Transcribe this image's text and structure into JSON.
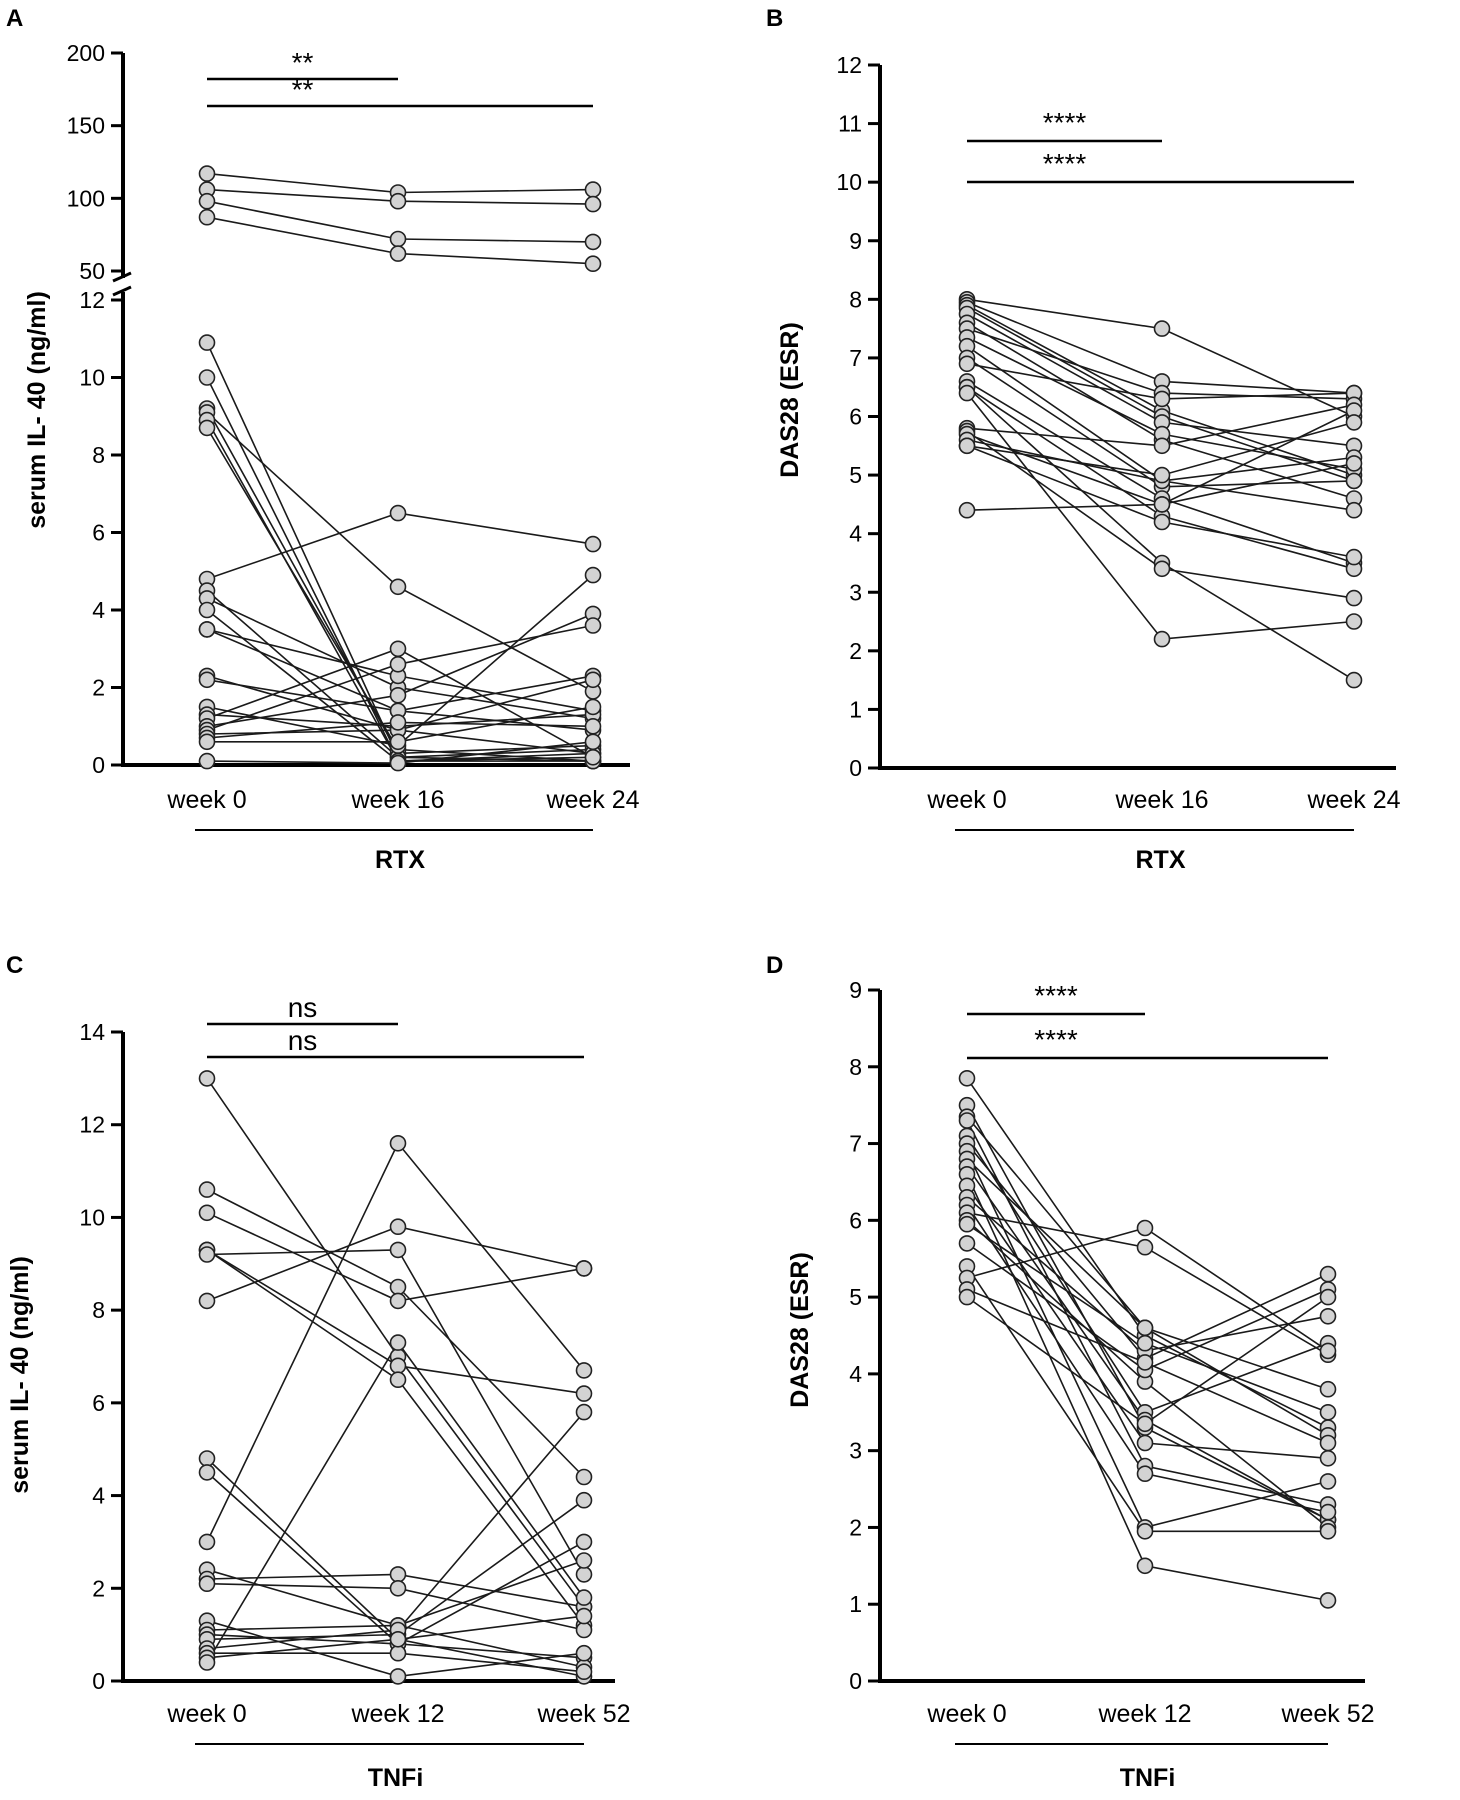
{
  "chart_data": [
    {
      "panel": "A",
      "type": "line",
      "categories": [
        "week 0",
        "week 16",
        "week 24"
      ],
      "group_label": "RTX",
      "ylabel": "serum IL- 40 (ng/ml)",
      "axis_break": true,
      "lower_ylim": [
        0,
        12
      ],
      "lower_ticks": [
        0,
        2,
        4,
        6,
        8,
        10,
        12
      ],
      "upper_ylim": [
        50,
        200
      ],
      "upper_ticks": [
        50,
        100,
        150,
        200
      ],
      "significance": [
        {
          "from": "week 0",
          "to": "week 16",
          "label": "**"
        },
        {
          "from": "week 0",
          "to": "week 24",
          "label": "**"
        }
      ],
      "series": [
        {
          "values": [
            117,
            104,
            106
          ]
        },
        {
          "values": [
            106,
            98,
            96
          ]
        },
        {
          "values": [
            98,
            72,
            70
          ]
        },
        {
          "values": [
            87,
            62,
            55
          ]
        },
        {
          "values": [
            10.9,
            0.2,
            0.1
          ]
        },
        {
          "values": [
            10.0,
            0.1,
            0.3
          ]
        },
        {
          "values": [
            9.2,
            0.3,
            0.5
          ]
        },
        {
          "values": [
            9.1,
            4.6,
            1.9
          ]
        },
        {
          "values": [
            8.9,
            0.1,
            0.2
          ]
        },
        {
          "values": [
            8.7,
            0.4,
            0.1
          ]
        },
        {
          "values": [
            4.8,
            6.5,
            5.7
          ]
        },
        {
          "values": [
            4.5,
            0.2,
            0.4
          ]
        },
        {
          "values": [
            4.3,
            2.0,
            1.2
          ]
        },
        {
          "values": [
            4.0,
            0.1,
            0.1
          ]
        },
        {
          "values": [
            3.5,
            1.4,
            0.9
          ]
        },
        {
          "values": [
            3.5,
            2.3,
            1.4
          ]
        },
        {
          "values": [
            2.3,
            0.9,
            0.3
          ]
        },
        {
          "values": [
            2.2,
            1.4,
            2.3
          ]
        },
        {
          "values": [
            1.5,
            0.5,
            4.9
          ]
        },
        {
          "values": [
            1.3,
            1.0,
            1.3
          ]
        },
        {
          "values": [
            1.2,
            3.0,
            0.2
          ]
        },
        {
          "values": [
            1.0,
            1.8,
            3.9
          ]
        },
        {
          "values": [
            0.9,
            2.6,
            3.6
          ]
        },
        {
          "values": [
            0.8,
            0.9,
            2.2
          ]
        },
        {
          "values": [
            0.7,
            1.1,
            1.0
          ]
        },
        {
          "values": [
            0.6,
            0.6,
            1.5
          ]
        },
        {
          "values": [
            0.1,
            0.05,
            0.6
          ]
        }
      ]
    },
    {
      "panel": "B",
      "type": "line",
      "categories": [
        "week 0",
        "week 16",
        "week 24"
      ],
      "group_label": "RTX",
      "ylabel": "DAS28 (ESR)",
      "ylim": [
        0,
        12
      ],
      "ticks": [
        0,
        1,
        2,
        3,
        4,
        5,
        6,
        7,
        8,
        9,
        10,
        11,
        12
      ],
      "significance": [
        {
          "from": "week 0",
          "to": "week 16",
          "label": "****"
        },
        {
          "from": "week 0",
          "to": "week 24",
          "label": "****"
        }
      ],
      "series": [
        {
          "values": [
            8.0,
            7.5,
            6.0
          ]
        },
        {
          "values": [
            7.95,
            6.6,
            6.4
          ]
        },
        {
          "values": [
            7.9,
            6.1,
            5.0
          ]
        },
        {
          "values": [
            7.85,
            6.0,
            4.9
          ]
        },
        {
          "values": [
            7.75,
            5.9,
            5.5
          ]
        },
        {
          "values": [
            7.6,
            5.6,
            4.6
          ]
        },
        {
          "values": [
            7.5,
            6.4,
            6.3
          ]
        },
        {
          "values": [
            7.35,
            5.7,
            5.1
          ]
        },
        {
          "values": [
            7.2,
            4.9,
            5.3
          ]
        },
        {
          "values": [
            7.0,
            4.8,
            4.9
          ]
        },
        {
          "values": [
            6.9,
            6.3,
            6.4
          ]
        },
        {
          "values": [
            6.6,
            4.6,
            3.5
          ]
        },
        {
          "values": [
            6.5,
            3.5,
            1.5
          ]
        },
        {
          "values": [
            6.5,
            4.3,
            3.4
          ]
        },
        {
          "values": [
            6.4,
            2.2,
            2.5
          ]
        },
        {
          "values": [
            5.8,
            5.5,
            6.2
          ]
        },
        {
          "values": [
            5.75,
            3.4,
            2.9
          ]
        },
        {
          "values": [
            5.7,
            4.5,
            6.1
          ]
        },
        {
          "values": [
            5.6,
            4.9,
            4.4
          ]
        },
        {
          "values": [
            5.5,
            5.0,
            5.9
          ]
        },
        {
          "values": [
            5.5,
            4.2,
            3.6
          ]
        },
        {
          "values": [
            4.4,
            4.5,
            5.2
          ]
        }
      ]
    },
    {
      "panel": "C",
      "type": "line",
      "categories": [
        "week 0",
        "week 12",
        "week 52"
      ],
      "group_label": "TNFi",
      "ylabel": "serum IL- 40 (ng/ml)",
      "ylim": [
        0,
        14
      ],
      "ticks": [
        0,
        2,
        4,
        6,
        8,
        10,
        12,
        14
      ],
      "significance": [
        {
          "from": "week 0",
          "to": "week 12",
          "label": "ns"
        },
        {
          "from": "week 0",
          "to": "week 52",
          "label": "ns"
        }
      ],
      "series": [
        {
          "values": [
            13.0,
            7.0,
            1.6
          ]
        },
        {
          "values": [
            10.6,
            8.5,
            4.4
          ]
        },
        {
          "values": [
            10.1,
            8.2,
            8.9
          ]
        },
        {
          "values": [
            9.3,
            6.8,
            6.2
          ]
        },
        {
          "values": [
            9.3,
            6.5,
            1.2
          ]
        },
        {
          "values": [
            9.2,
            9.3,
            2.3
          ]
        },
        {
          "values": [
            8.2,
            9.8,
            8.9
          ]
        },
        {
          "values": [
            4.8,
            0.9,
            0.1
          ]
        },
        {
          "values": [
            4.5,
            0.8,
            0.5
          ]
        },
        {
          "values": [
            3.0,
            11.6,
            6.7
          ]
        },
        {
          "values": [
            2.4,
            1.2,
            0.3
          ]
        },
        {
          "values": [
            2.2,
            2.3,
            1.6
          ]
        },
        {
          "values": [
            2.1,
            2.0,
            1.1
          ]
        },
        {
          "values": [
            1.3,
            0.1,
            0.6
          ]
        },
        {
          "values": [
            1.1,
            1.2,
            2.6
          ]
        },
        {
          "values": [
            1.0,
            0.8,
            3.0
          ]
        },
        {
          "values": [
            0.9,
            1.0,
            3.9
          ]
        },
        {
          "values": [
            0.7,
            1.1,
            5.8
          ]
        },
        {
          "values": [
            0.6,
            0.6,
            0.2
          ]
        },
        {
          "values": [
            0.5,
            0.9,
            1.4
          ]
        },
        {
          "values": [
            0.4,
            7.3,
            1.8
          ]
        }
      ]
    },
    {
      "panel": "D",
      "type": "line",
      "categories": [
        "week 0",
        "week 12",
        "week 52"
      ],
      "group_label": "TNFi",
      "ylabel": "DAS28 (ESR)",
      "ylim": [
        0,
        9
      ],
      "ticks": [
        0,
        1,
        2,
        3,
        4,
        5,
        6,
        7,
        8,
        9
      ],
      "significance": [
        {
          "from": "week 0",
          "to": "week 12",
          "label": "****"
        },
        {
          "from": "week 0",
          "to": "week 52",
          "label": "****"
        }
      ],
      "series": [
        {
          "values": [
            7.85,
            4.5,
            3.3
          ]
        },
        {
          "values": [
            7.5,
            3.3,
            2.1
          ]
        },
        {
          "values": [
            7.35,
            4.6,
            3.8
          ]
        },
        {
          "values": [
            7.3,
            2.8,
            2.3
          ]
        },
        {
          "values": [
            7.1,
            3.5,
            4.4
          ]
        },
        {
          "values": [
            7.0,
            4.2,
            5.3
          ]
        },
        {
          "values": [
            6.9,
            2.0,
            2.6
          ]
        },
        {
          "values": [
            6.8,
            4.6,
            3.2
          ]
        },
        {
          "values": [
            6.7,
            3.4,
            2.1
          ]
        },
        {
          "values": [
            6.6,
            1.5,
            1.05
          ]
        },
        {
          "values": [
            6.45,
            3.1,
            2.9
          ]
        },
        {
          "values": [
            6.3,
            4.3,
            4.75
          ]
        },
        {
          "values": [
            6.2,
            2.7,
            2.2
          ]
        },
        {
          "values": [
            6.1,
            5.65,
            4.25
          ]
        },
        {
          "values": [
            6.0,
            3.9,
            2.0
          ]
        },
        {
          "values": [
            5.95,
            4.4,
            3.5
          ]
        },
        {
          "values": [
            5.7,
            4.05,
            5.1
          ]
        },
        {
          "values": [
            5.4,
            1.95,
            1.95
          ]
        },
        {
          "values": [
            5.25,
            5.9,
            4.3
          ]
        },
        {
          "values": [
            5.1,
            4.15,
            3.1
          ]
        },
        {
          "values": [
            5.0,
            3.35,
            5.0
          ]
        }
      ]
    }
  ]
}
